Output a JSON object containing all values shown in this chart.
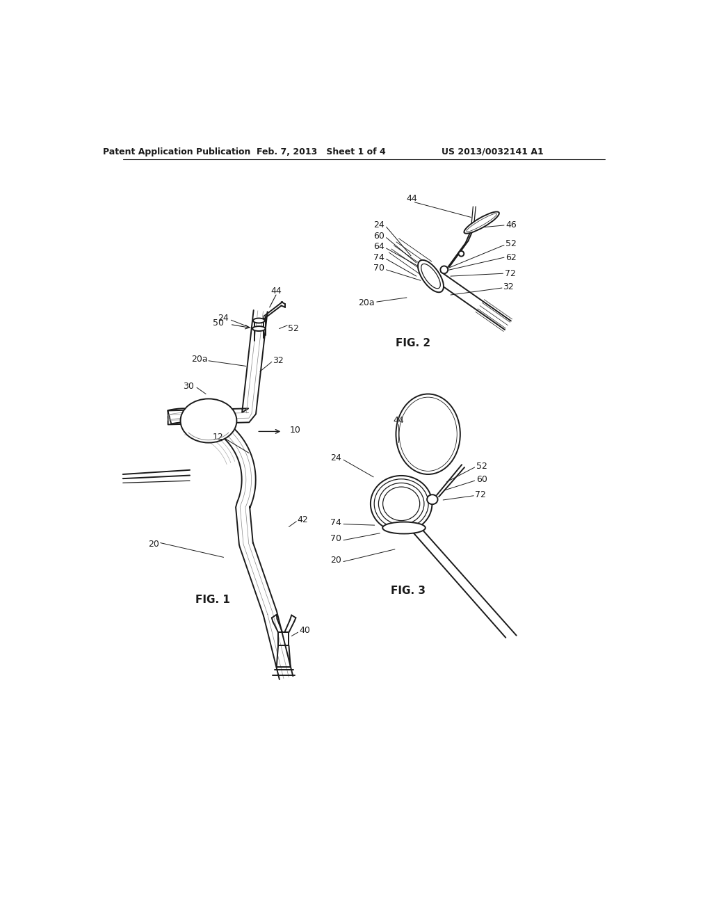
{
  "title_left": "Patent Application Publication",
  "title_center": "Feb. 7, 2013   Sheet 1 of 4",
  "title_right": "US 2013/0032141 A1",
  "bg_color": "#ffffff",
  "line_color": "#1a1a1a",
  "fig1_label": "FIG. 1",
  "fig2_label": "FIG. 2",
  "fig3_label": "FIG. 3"
}
